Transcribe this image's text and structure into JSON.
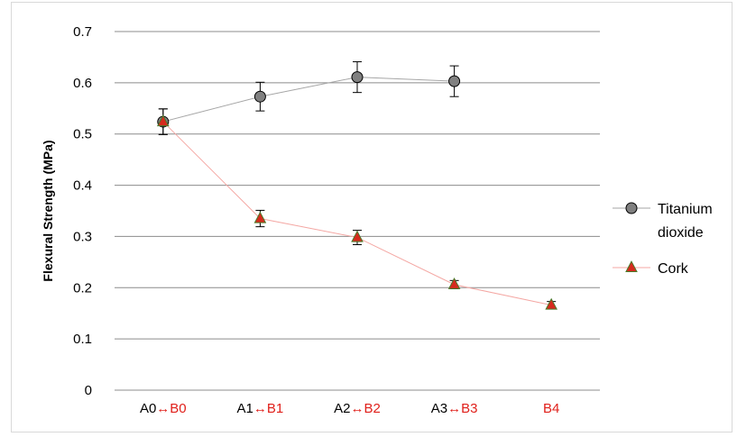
{
  "chart_data": {
    "type": "line",
    "title": "",
    "xlabel": "",
    "ylabel": "Flexural Strength (MPa)",
    "ylim": [
      0,
      0.7
    ],
    "yticks": [
      0,
      0.1,
      0.2,
      0.3,
      0.4,
      0.5,
      0.6,
      0.7
    ],
    "ytick_labels": [
      "0",
      "0.1",
      "0.2",
      "0.3",
      "0.4",
      "0.5",
      "0.6",
      "0.7"
    ],
    "grid": true,
    "legend_position": "right",
    "categories": [
      {
        "a": "A0",
        "arrow": "↔",
        "b": "B0"
      },
      {
        "a": "A1",
        "arrow": "↔",
        "b": "B1"
      },
      {
        "a": "A2",
        "arrow": "↔",
        "b": "B2"
      },
      {
        "a": "A3",
        "arrow": "↔",
        "b": "B3"
      },
      {
        "a": "",
        "arrow": "",
        "b": "B4"
      }
    ],
    "category_colors": {
      "a": "#000000",
      "b": "#e0201b"
    },
    "series": [
      {
        "name": "Titanium dioxide",
        "legend_lines": [
          "Titanium",
          "dioxide"
        ],
        "values": [
          0.524,
          0.573,
          0.611,
          0.603,
          null
        ],
        "errors": [
          0.025,
          0.028,
          0.03,
          0.03,
          null
        ],
        "marker": "circle",
        "marker_fill": "#808080",
        "marker_stroke": "#000000",
        "line_color": "#a6a6a6"
      },
      {
        "name": "Cork",
        "legend_lines": [
          "Cork"
        ],
        "values": [
          0.524,
          0.335,
          0.298,
          0.206,
          0.166
        ],
        "errors": [
          0.025,
          0.016,
          0.014,
          0.008,
          0.007
        ],
        "marker": "triangle",
        "marker_fill": "#d62a1e",
        "marker_stroke": "#4a7a2a",
        "line_color": "#f4a7a3"
      }
    ]
  }
}
